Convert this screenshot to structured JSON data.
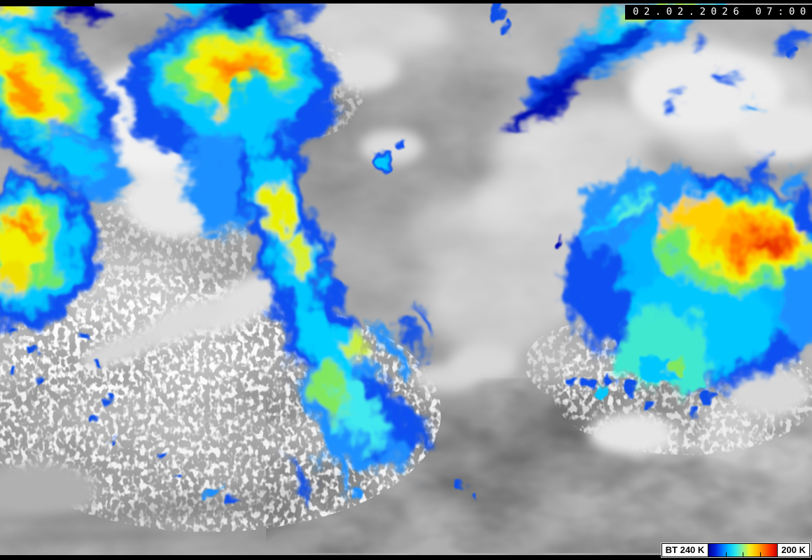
{
  "overlay": {
    "timestamp": "02.02.2026 07:00"
  },
  "legend": {
    "min_label": "BT 240 K",
    "max_label": "200 K",
    "tick_positions_pct": [
      25,
      50,
      75
    ],
    "gradient_stops": [
      "#00008b",
      "#0020d8",
      "#0070ff",
      "#00c0ff",
      "#30e8e8",
      "#90f090",
      "#f0f020",
      "#ffc000",
      "#ff7800",
      "#ff3000",
      "#c80000"
    ]
  }
}
